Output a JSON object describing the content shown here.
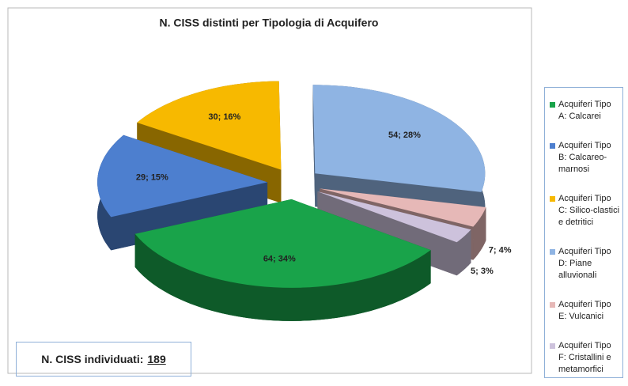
{
  "chart_data": {
    "type": "pie",
    "title": "N. CISS distinti per Tipologia di Acquifero",
    "categories": [
      "Acquiferi Tipo A: Calcarei",
      "Acquiferi Tipo B: Calcareo-marnosi",
      "Acquiferi Tipo C: Silico-clastici e detritici",
      "Acquiferi Tipo D: Piane alluvionali",
      "Acquiferi Tipo E: Vulcanici",
      "Acquiferi Tipo F: Cristallini e metamorfici"
    ],
    "values": [
      64,
      29,
      30,
      54,
      7,
      5
    ],
    "value_labels": [
      "64; 34%",
      "29; 15%",
      "30; 16%",
      "54; 28%",
      "7; 4%",
      "5; 3%"
    ],
    "colors": [
      "#19a34a",
      "#4d7fcf",
      "#f7b900",
      "#8fb4e3",
      "#e6b8b7",
      "#cdc2dc"
    ],
    "legend": "right",
    "total_label": "N. CISS individuati:",
    "total": 189
  }
}
